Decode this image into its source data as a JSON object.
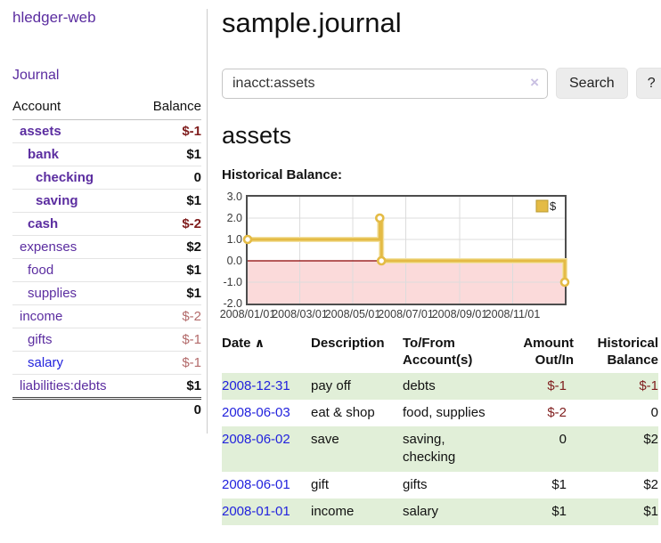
{
  "app": {
    "brand": "hledger-web",
    "nav_journal": "Journal"
  },
  "sidebar": {
    "account_header": "Account",
    "balance_header": "Balance",
    "accounts": [
      {
        "name": "assets",
        "depth": 1,
        "bold": true,
        "balance": "$-1",
        "neg": "strong"
      },
      {
        "name": "bank",
        "depth": 2,
        "bold": true,
        "balance": "$1"
      },
      {
        "name": "checking",
        "depth": 3,
        "bold": true,
        "balance": "0"
      },
      {
        "name": "saving",
        "depth": 3,
        "bold": true,
        "balance": "$1"
      },
      {
        "name": "cash",
        "depth": 2,
        "bold": true,
        "balance": "$-2",
        "neg": "strong"
      },
      {
        "name": "expenses",
        "depth": 1,
        "balance": "$2"
      },
      {
        "name": "food",
        "depth": 2,
        "balance": "$1"
      },
      {
        "name": "supplies",
        "depth": 2,
        "balance": "$1"
      },
      {
        "name": "income",
        "depth": 1,
        "balance": "$-2",
        "neg": "soft"
      },
      {
        "name": "gifts",
        "depth": 2,
        "balance": "$-1",
        "neg": "soft"
      },
      {
        "name": "salary",
        "depth": 2,
        "balance": "$-1",
        "neg": "soft",
        "blue": true
      },
      {
        "name": "liabilities:debts",
        "depth": 1,
        "balance": "$1"
      }
    ],
    "total": "0"
  },
  "main": {
    "title": "sample.journal",
    "search": {
      "value": "inacct:assets",
      "clear_icon": "×",
      "search_button": "Search",
      "help_button": "?"
    },
    "account_heading": "assets",
    "chart_label": "Historical Balance:"
  },
  "chart_data": {
    "type": "line",
    "step": true,
    "title": "Historical Balance",
    "series": [
      {
        "name": "$",
        "color": "#e4bb45",
        "points": [
          [
            "2008-01-01",
            1
          ],
          [
            "2008-06-01",
            2
          ],
          [
            "2008-06-03",
            0
          ],
          [
            "2008-12-31",
            -1
          ]
        ]
      }
    ],
    "xlim": [
      "2008-01-01",
      "2008-12-31"
    ],
    "ylim": [
      -2,
      3
    ],
    "y_ticks": [
      {
        "v": 3,
        "label": "3.0"
      },
      {
        "v": 2,
        "label": "2.0"
      },
      {
        "v": 1,
        "label": "1.0"
      },
      {
        "v": 0,
        "label": "0.0"
      },
      {
        "v": -1,
        "label": "-1.0"
      },
      {
        "v": -2,
        "label": "-2.0"
      }
    ],
    "x_ticks": [
      {
        "date": "2008-01-01",
        "label": "2008/01/01"
      },
      {
        "date": "2008-03-01",
        "label": "2008/03/01"
      },
      {
        "date": "2008-05-01",
        "label": "2008/05/01"
      },
      {
        "date": "2008-07-01",
        "label": "2008/07/01"
      },
      {
        "date": "2008-09-01",
        "label": "2008/09/01"
      },
      {
        "date": "2008-11-01",
        "label": "2008/11/01"
      }
    ],
    "legend": {
      "label": "$",
      "position": "top-right"
    },
    "grid": true,
    "colors": {
      "negative_fill": "#fbdada",
      "zero_line": "#8b0000",
      "grid": "#dcdcdc",
      "border": "#4d4d4d",
      "marker_fill": "#ffffff",
      "line_halo": "#f3e2a4"
    }
  },
  "register": {
    "headers": {
      "date": "Date",
      "sort_icon": "∧",
      "description": "Description",
      "accounts": "To/From Account(s)",
      "amount": "Amount Out/In",
      "balance": "Historical Balance"
    },
    "rows": [
      {
        "date": "2008-12-31",
        "description": "pay off",
        "accounts": "debts",
        "amount": "$-1",
        "amount_neg": true,
        "balance": "$-1",
        "balance_neg": true
      },
      {
        "date": "2008-06-03",
        "description": "eat & shop",
        "accounts": "food, supplies",
        "amount": "$-2",
        "amount_neg": true,
        "balance": "0"
      },
      {
        "date": "2008-06-02",
        "description": "save",
        "accounts": "saving, checking",
        "amount": "0",
        "balance": "$2"
      },
      {
        "date": "2008-06-01",
        "description": "gift",
        "accounts": "gifts",
        "amount": "$1",
        "balance": "$2"
      },
      {
        "date": "2008-01-01",
        "description": "income",
        "accounts": "salary",
        "amount": "$1",
        "balance": "$1"
      }
    ]
  }
}
